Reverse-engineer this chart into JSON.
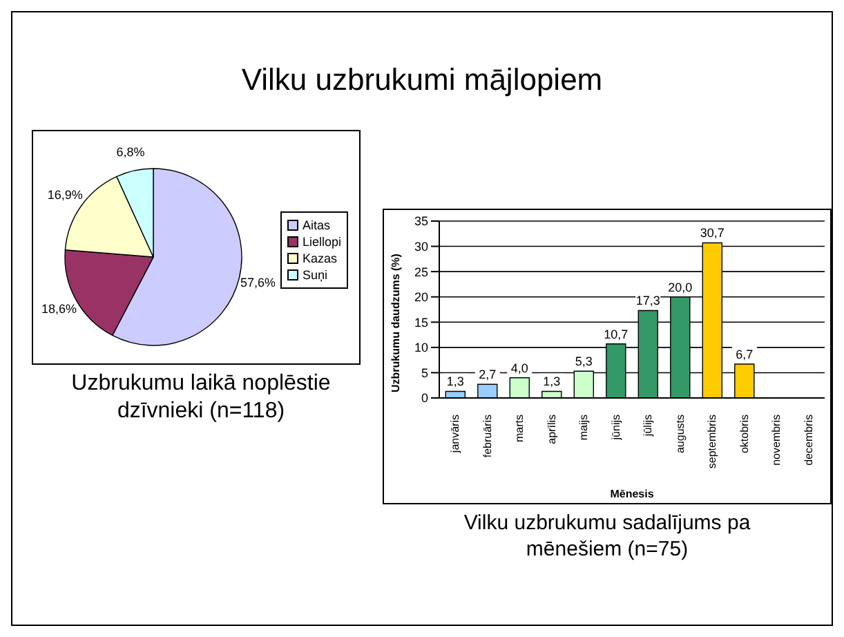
{
  "chart_data": [
    {
      "type": "pie",
      "title": "Vilku uzbrukumi mājlopiem",
      "subtitle": "Uzbrukumu laikā noplēstie dzīvnieki (n=118)",
      "categories": [
        "Aitas",
        "Liellopi",
        "Kazas",
        "Suņi"
      ],
      "values": [
        57.6,
        18.6,
        16.9,
        6.8
      ],
      "colors": [
        "#ccccff",
        "#993366",
        "#ffffcc",
        "#ccffff"
      ],
      "value_labels": [
        "57,6%",
        "18,6%",
        "16,9%",
        "6,8%"
      ],
      "legend": "right"
    },
    {
      "type": "bar",
      "subtitle": "Vilku uzbrukumu sadalījums pa mēnešiem (n=75)",
      "xlabel": "Mēnesis",
      "ylabel": "Uzbrukumu daudzums (%)",
      "categories": [
        "janvāris",
        "februāris",
        "marts",
        "aprīlis",
        "maijs",
        "jūnijs",
        "jūlijs",
        "augusts",
        "septembris",
        "oktobris",
        "novembris",
        "decembris"
      ],
      "values": [
        1.3,
        2.7,
        4.0,
        1.3,
        5.3,
        10.7,
        17.3,
        20.0,
        30.7,
        6.7,
        null,
        null
      ],
      "colors": [
        "#99ccff",
        "#99ccff",
        "#ccffcc",
        "#ccffcc",
        "#ccffcc",
        "#339966",
        "#339966",
        "#339966",
        "#ffcc00",
        "#ffcc00",
        "#ffcc00",
        "#ffcc00"
      ],
      "value_labels": [
        "1,3",
        "2,7",
        "4,0",
        "1,3",
        "5,3",
        "10,7",
        "17,3",
        "20,0",
        "30,7",
        "6,7",
        null,
        null
      ],
      "ylim": [
        0,
        35
      ],
      "yticks": [
        0,
        5,
        10,
        15,
        20,
        25,
        30,
        35
      ],
      "grid": "y"
    }
  ]
}
